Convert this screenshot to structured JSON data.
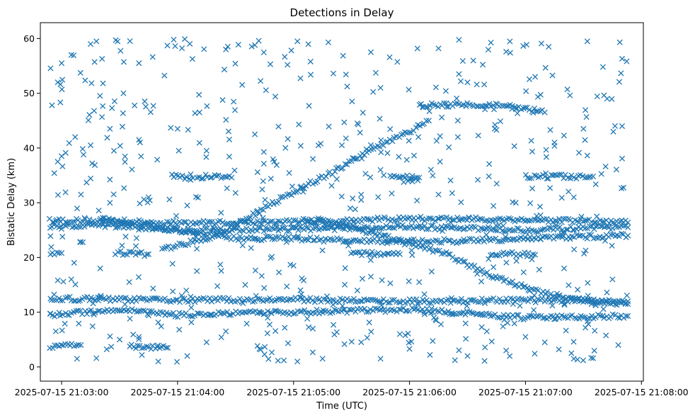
{
  "chart_data": {
    "type": "scatter",
    "title": "Detections in Delay",
    "xlabel": "Time (UTC)",
    "ylabel": "Bistatic Delay (km)",
    "marker": "x",
    "color": "#1f77b4",
    "xlim": [
      "2025-07-15 21:02:49",
      "2025-07-15 21:08:01"
    ],
    "ylim": [
      -2.6,
      62.9
    ],
    "xticks": [
      "2025-07-15 21:03:00",
      "2025-07-15 21:04:00",
      "2025-07-15 21:05:00",
      "2025-07-15 21:06:00",
      "2025-07-15 21:07:00",
      "2025-07-15 21:08:00"
    ],
    "yticks": [
      "0",
      "10",
      "20",
      "30",
      "40",
      "50",
      "60"
    ],
    "data_span": [
      "2025-07-15 21:02:54",
      "2025-07-15 21:07:53"
    ],
    "tracks": [
      {
        "points": [
          [
            "2025-07-15 21:02:54",
            26.8
          ],
          [
            "2025-07-15 21:04:00",
            26.3
          ],
          [
            "2025-07-15 21:05:00",
            26.5
          ],
          [
            "2025-07-15 21:06:00",
            27.1
          ],
          [
            "2025-07-15 21:07:00",
            26.9
          ],
          [
            "2025-07-15 21:07:53",
            26.4
          ]
        ]
      },
      {
        "points": [
          [
            "2025-07-15 21:02:54",
            25.6
          ],
          [
            "2025-07-15 21:03:20",
            25.9
          ],
          [
            "2025-07-15 21:04:00",
            25.0
          ],
          [
            "2025-07-15 21:05:00",
            25.2
          ],
          [
            "2025-07-15 21:06:00",
            25.6
          ],
          [
            "2025-07-15 21:07:00",
            25.0
          ],
          [
            "2025-07-15 21:07:53",
            25.5
          ]
        ]
      },
      {
        "points": [
          [
            "2025-07-15 21:02:54",
            12.5
          ],
          [
            "2025-07-15 21:04:00",
            12.2
          ],
          [
            "2025-07-15 21:05:00",
            12.3
          ],
          [
            "2025-07-15 21:06:00",
            12.0
          ],
          [
            "2025-07-15 21:07:00",
            12.2
          ],
          [
            "2025-07-15 21:07:53",
            12.0
          ]
        ]
      },
      {
        "points": [
          [
            "2025-07-15 21:02:54",
            9.5
          ],
          [
            "2025-07-15 21:03:30",
            10.5
          ],
          [
            "2025-07-15 21:04:00",
            9.5
          ],
          [
            "2025-07-15 21:05:00",
            10.0
          ],
          [
            "2025-07-15 21:06:00",
            10.5
          ],
          [
            "2025-07-15 21:07:00",
            9.0
          ],
          [
            "2025-07-15 21:07:53",
            9.3
          ]
        ]
      },
      {
        "points": [
          [
            "2025-07-15 21:03:20",
            27.0
          ],
          [
            "2025-07-15 21:04:00",
            25.0
          ],
          [
            "2025-07-15 21:04:30",
            23.5
          ],
          [
            "2025-07-15 21:05:00",
            23.5
          ],
          [
            "2025-07-15 21:05:30",
            23.0
          ],
          [
            "2025-07-15 21:06:00",
            23.0
          ],
          [
            "2025-07-15 21:06:30",
            23.0
          ],
          [
            "2025-07-15 21:07:00",
            23.5
          ],
          [
            "2025-07-15 21:07:53",
            24.0
          ]
        ]
      },
      {
        "points": [
          [
            "2025-07-15 21:03:52",
            21.5
          ],
          [
            "2025-07-15 21:04:20",
            24.0
          ],
          [
            "2025-07-15 21:04:40",
            28.0
          ],
          [
            "2025-07-15 21:05:00",
            32.0
          ],
          [
            "2025-07-15 21:05:20",
            35.5
          ],
          [
            "2025-07-15 21:05:40",
            39.5
          ],
          [
            "2025-07-15 21:06:00",
            43.0
          ],
          [
            "2025-07-15 21:06:10",
            45.0
          ]
        ]
      },
      {
        "points": [
          [
            "2025-07-15 21:06:05",
            47.8
          ],
          [
            "2025-07-15 21:06:40",
            48.0
          ],
          [
            "2025-07-15 21:07:00",
            47.2
          ],
          [
            "2025-07-15 21:07:10",
            46.5
          ]
        ]
      },
      {
        "points": [
          [
            "2025-07-15 21:05:05",
            26.8
          ],
          [
            "2025-07-15 21:05:30",
            25.5
          ],
          [
            "2025-07-15 21:06:00",
            22.5
          ],
          [
            "2025-07-15 21:06:20",
            20.5
          ],
          [
            "2025-07-15 21:06:40",
            17.0
          ],
          [
            "2025-07-15 21:07:00",
            14.5
          ],
          [
            "2025-07-15 21:07:20",
            12.5
          ],
          [
            "2025-07-15 21:07:53",
            11.5
          ]
        ]
      },
      {
        "points": [
          [
            "2025-07-15 21:02:54",
            20.5
          ],
          [
            "2025-07-15 21:03:00",
            20.8
          ]
        ]
      },
      {
        "points": [
          [
            "2025-07-15 21:03:28",
            20.8
          ],
          [
            "2025-07-15 21:03:45",
            20.6
          ]
        ]
      },
      {
        "points": [
          [
            "2025-07-15 21:05:30",
            20.8
          ],
          [
            "2025-07-15 21:05:55",
            20.6
          ]
        ]
      },
      {
        "points": [
          [
            "2025-07-15 21:06:42",
            20.8
          ],
          [
            "2025-07-15 21:07:05",
            20.5
          ]
        ]
      },
      {
        "points": [
          [
            "2025-07-15 21:03:57",
            34.8
          ],
          [
            "2025-07-15 21:04:08",
            34.5
          ]
        ]
      },
      {
        "points": [
          [
            "2025-07-15 21:04:10",
            34.8
          ],
          [
            "2025-07-15 21:04:28",
            34.6
          ]
        ]
      },
      {
        "points": [
          [
            "2025-07-15 21:05:50",
            34.8
          ],
          [
            "2025-07-15 21:06:05",
            34.6
          ]
        ]
      },
      {
        "points": [
          [
            "2025-07-15 21:07:00",
            34.8
          ],
          [
            "2025-07-15 21:07:35",
            34.8
          ]
        ]
      },
      {
        "points": [
          [
            "2025-07-15 21:02:54",
            3.8
          ],
          [
            "2025-07-15 21:03:10",
            4.0
          ]
        ]
      },
      {
        "points": [
          [
            "2025-07-15 21:03:35",
            3.7
          ],
          [
            "2025-07-15 21:03:55",
            3.5
          ]
        ]
      }
    ],
    "scatter_points": [
      [
        "2025-07-15 21:02:55",
        47.8
      ],
      [
        "2025-07-15 21:02:58",
        52.0
      ],
      [
        "2025-07-15 21:03:00",
        55.5
      ],
      [
        "2025-07-15 21:03:05",
        57.0
      ],
      [
        "2025-07-15 21:03:15",
        59.0
      ],
      [
        "2025-07-15 21:03:18",
        59.5
      ],
      [
        "2025-07-15 21:03:28",
        59.7
      ],
      [
        "2025-07-15 21:03:58",
        59.8
      ],
      [
        "2025-07-15 21:05:02",
        59.5
      ],
      [
        "2025-07-15 21:05:18",
        59.3
      ],
      [
        "2025-07-15 21:07:32",
        59.5
      ],
      [
        "2025-07-15 21:03:40",
        55.5
      ],
      [
        "2025-07-15 21:04:25",
        58.0
      ],
      [
        "2025-07-15 21:04:40",
        58.8
      ],
      [
        "2025-07-15 21:05:40",
        57.5
      ],
      [
        "2025-07-15 21:06:15",
        58.2
      ],
      [
        "2025-07-15 21:06:50",
        57.6
      ],
      [
        "2025-07-15 21:07:12",
        58.5
      ],
      [
        "2025-07-15 21:07:50",
        56.3
      ],
      [
        "2025-07-15 21:03:32",
        50.0
      ],
      [
        "2025-07-15 21:04:48",
        55.3
      ],
      [
        "2025-07-15 21:05:45",
        51.0
      ],
      [
        "2025-07-15 21:06:30",
        52.0
      ],
      [
        "2025-07-15 21:07:05",
        53.0
      ],
      [
        "2025-07-15 21:02:58",
        37.5
      ],
      [
        "2025-07-15 21:03:00",
        38.5
      ],
      [
        "2025-07-15 21:03:07",
        42.0
      ],
      [
        "2025-07-15 21:03:15",
        40.5
      ],
      [
        "2025-07-15 21:03:25",
        43.5
      ],
      [
        "2025-07-15 21:03:40",
        41.5
      ],
      [
        "2025-07-15 21:04:00",
        43.5
      ],
      [
        "2025-07-15 21:04:15",
        39.5
      ],
      [
        "2025-07-15 21:04:40",
        42.5
      ],
      [
        "2025-07-15 21:04:50",
        37.5
      ],
      [
        "2025-07-15 21:05:10",
        38.0
      ],
      [
        "2025-07-15 21:05:25",
        40.5
      ],
      [
        "2025-07-15 21:05:45",
        36.0
      ],
      [
        "2025-07-15 21:06:25",
        42.0
      ],
      [
        "2025-07-15 21:06:45",
        43.3
      ],
      [
        "2025-07-15 21:07:15",
        41.0
      ],
      [
        "2025-07-15 21:07:30",
        43.5
      ],
      [
        "2025-07-15 21:07:50",
        44.0
      ],
      [
        "2025-07-15 21:03:10",
        31.5
      ],
      [
        "2025-07-15 21:03:25",
        30.0
      ],
      [
        "2025-07-15 21:03:45",
        31.0
      ],
      [
        "2025-07-15 21:04:05",
        29.5
      ],
      [
        "2025-07-15 21:04:30",
        31.8
      ],
      [
        "2025-07-15 21:05:05",
        32.0
      ],
      [
        "2025-07-15 21:05:35",
        30.5
      ],
      [
        "2025-07-15 21:06:15",
        31.5
      ],
      [
        "2025-07-15 21:06:55",
        30.0
      ],
      [
        "2025-07-15 21:07:25",
        31.0
      ],
      [
        "2025-07-15 21:03:05",
        16.0
      ],
      [
        "2025-07-15 21:03:20",
        18.0
      ],
      [
        "2025-07-15 21:03:35",
        15.5
      ],
      [
        "2025-07-15 21:04:10",
        17.5
      ],
      [
        "2025-07-15 21:04:35",
        15.0
      ],
      [
        "2025-07-15 21:05:00",
        18.5
      ],
      [
        "2025-07-15 21:05:40",
        16.5
      ],
      [
        "2025-07-15 21:06:05",
        15.5
      ],
      [
        "2025-07-15 21:06:35",
        17.0
      ],
      [
        "2025-07-15 21:07:20",
        18.0
      ],
      [
        "2025-07-15 21:07:45",
        16.0
      ],
      [
        "2025-07-15 21:02:57",
        6.5
      ],
      [
        "2025-07-15 21:03:08",
        1.5
      ],
      [
        "2025-07-15 21:03:18",
        1.6
      ],
      [
        "2025-07-15 21:03:30",
        5.0
      ],
      [
        "2025-07-15 21:03:50",
        1.0
      ],
      [
        "2025-07-15 21:04:05",
        2.0
      ],
      [
        "2025-07-15 21:04:15",
        4.5
      ],
      [
        "2025-07-15 21:04:45",
        2.3
      ],
      [
        "2025-07-15 21:04:55",
        1.2
      ],
      [
        "2025-07-15 21:05:02",
        1.0
      ],
      [
        "2025-07-15 21:05:15",
        1.5
      ],
      [
        "2025-07-15 21:05:35",
        4.5
      ],
      [
        "2025-07-15 21:05:45",
        1.5
      ],
      [
        "2025-07-15 21:06:00",
        3.3
      ],
      [
        "2025-07-15 21:06:30",
        2.0
      ],
      [
        "2025-07-15 21:06:50",
        3.0
      ],
      [
        "2025-07-15 21:07:10",
        4.5
      ],
      [
        "2025-07-15 21:07:25",
        1.5
      ],
      [
        "2025-07-15 21:07:35",
        1.6
      ],
      [
        "2025-07-15 21:07:48",
        4.0
      ],
      [
        "2025-07-15 21:03:40",
        5.5
      ],
      [
        "2025-07-15 21:04:25",
        6.5
      ],
      [
        "2025-07-15 21:05:10",
        7.0
      ],
      [
        "2025-07-15 21:05:55",
        6.0
      ],
      [
        "2025-07-15 21:06:40",
        6.5
      ],
      [
        "2025-07-15 21:07:00",
        5.5
      ]
    ]
  }
}
